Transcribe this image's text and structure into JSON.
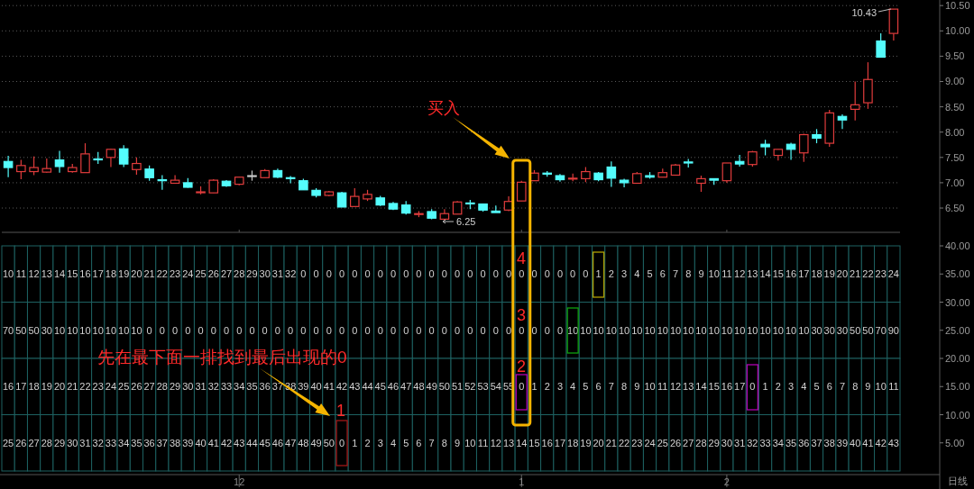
{
  "chart_data": [
    {
      "type": "candlestick",
      "tick_labels": "y",
      "grid": "y",
      "categories": [
        null,
        null,
        null,
        null,
        null,
        null,
        null,
        null,
        null,
        null,
        null,
        null,
        null,
        null,
        null,
        null,
        null,
        null,
        "12",
        null,
        null,
        null,
        null,
        null,
        null,
        null,
        null,
        null,
        null,
        null,
        null,
        null,
        null,
        null,
        null,
        null,
        null,
        null,
        null,
        null,
        "1",
        null,
        null,
        null,
        null,
        null,
        null,
        null,
        null,
        null,
        null,
        null,
        null,
        null,
        null,
        null,
        "2",
        null,
        null,
        null,
        null,
        null,
        null,
        null,
        null,
        null,
        null,
        null,
        null,
        null
      ],
      "ohlc": [
        [
          7.42,
          7.53,
          7.11,
          7.3
        ],
        [
          7.22,
          7.45,
          7.07,
          7.34
        ],
        [
          7.22,
          7.52,
          7.15,
          7.3
        ],
        [
          7.21,
          7.48,
          7.2,
          7.28
        ],
        [
          7.45,
          7.63,
          7.2,
          7.32
        ],
        [
          7.22,
          7.37,
          7.2,
          7.3
        ],
        [
          7.2,
          7.78,
          7.2,
          7.57
        ],
        [
          7.47,
          7.61,
          7.37,
          7.46
        ],
        [
          7.5,
          7.67,
          7.31,
          7.66
        ],
        [
          7.67,
          7.74,
          7.31,
          7.37
        ],
        [
          7.26,
          7.5,
          7.16,
          7.38
        ],
        [
          7.27,
          7.34,
          7.04,
          7.1
        ],
        [
          7.06,
          7.15,
          6.86,
          7.04
        ],
        [
          6.99,
          7.15,
          6.99,
          7.05
        ],
        [
          7.0,
          7.09,
          6.9,
          6.91
        ],
        [
          6.81,
          6.93,
          6.77,
          6.82
        ],
        [
          6.8,
          7.07,
          6.8,
          7.05
        ],
        [
          7.03,
          7.05,
          6.92,
          6.94
        ],
        [
          6.97,
          7.11,
          6.95,
          7.11
        ],
        [
          7.14,
          7.24,
          7.04,
          7.14
        ],
        [
          7.1,
          7.27,
          7.1,
          7.24
        ],
        [
          7.24,
          7.28,
          7.09,
          7.11
        ],
        [
          7.1,
          7.13,
          6.99,
          7.08
        ],
        [
          7.04,
          7.08,
          6.86,
          6.86
        ],
        [
          6.85,
          6.89,
          6.71,
          6.75
        ],
        [
          6.75,
          6.84,
          6.73,
          6.82
        ],
        [
          6.8,
          6.82,
          6.52,
          6.52
        ],
        [
          6.53,
          6.89,
          6.53,
          6.73
        ],
        [
          6.68,
          6.86,
          6.64,
          6.77
        ],
        [
          6.7,
          6.74,
          6.54,
          6.56
        ],
        [
          6.59,
          6.62,
          6.46,
          6.48
        ],
        [
          6.56,
          6.64,
          6.37,
          6.4
        ],
        [
          6.38,
          6.44,
          6.32,
          6.39
        ],
        [
          6.43,
          6.48,
          6.28,
          6.3
        ],
        [
          6.28,
          6.48,
          6.25,
          6.39
        ],
        [
          6.38,
          6.64,
          6.38,
          6.62
        ],
        [
          6.6,
          6.66,
          6.48,
          6.59
        ],
        [
          6.58,
          6.59,
          6.43,
          6.46
        ],
        [
          6.44,
          6.55,
          6.41,
          6.41
        ],
        [
          6.46,
          6.73,
          6.44,
          6.63
        ],
        [
          6.64,
          7.04,
          6.64,
          7.01
        ],
        [
          7.04,
          7.25,
          7.04,
          7.19
        ],
        [
          7.19,
          7.23,
          7.12,
          7.17
        ],
        [
          7.14,
          7.17,
          7.02,
          7.06
        ],
        [
          7.08,
          7.18,
          7.03,
          7.09
        ],
        [
          7.08,
          7.31,
          7.01,
          7.22
        ],
        [
          7.19,
          7.21,
          7.03,
          7.06
        ],
        [
          7.31,
          7.42,
          6.92,
          7.09
        ],
        [
          7.05,
          7.08,
          6.91,
          7.0
        ],
        [
          6.99,
          7.21,
          6.99,
          7.18
        ],
        [
          7.14,
          7.21,
          7.08,
          7.11
        ],
        [
          7.11,
          7.28,
          7.11,
          7.2
        ],
        [
          7.15,
          7.37,
          7.15,
          7.35
        ],
        [
          7.41,
          7.47,
          7.3,
          7.39
        ],
        [
          6.99,
          7.14,
          6.82,
          7.08
        ],
        [
          7.08,
          7.08,
          6.96,
          7.05
        ],
        [
          7.04,
          7.39,
          7.0,
          7.39
        ],
        [
          7.42,
          7.55,
          7.32,
          7.37
        ],
        [
          7.36,
          7.63,
          7.32,
          7.61
        ],
        [
          7.76,
          7.85,
          7.54,
          7.71
        ],
        [
          7.54,
          7.66,
          7.44,
          7.66
        ],
        [
          7.76,
          7.79,
          7.45,
          7.66
        ],
        [
          7.59,
          7.97,
          7.41,
          7.95
        ],
        [
          7.95,
          8.06,
          7.78,
          7.88
        ],
        [
          7.78,
          8.44,
          7.71,
          8.38
        ],
        [
          8.31,
          8.35,
          8.06,
          8.24
        ],
        [
          8.45,
          9.0,
          8.23,
          8.54
        ],
        [
          8.58,
          9.38,
          8.46,
          9.04
        ],
        [
          9.8,
          9.95,
          9.48,
          9.48
        ],
        [
          9.95,
          10.43,
          9.81,
          10.43
        ]
      ],
      "colors": [
        "#54fcfc",
        "#e03c3c",
        "#e03c3c",
        "#e03c3c",
        "#54fcfc",
        "#e03c3c",
        "#e03c3c",
        "#54fcfc",
        "#e03c3c",
        "#54fcfc",
        "#e03c3c",
        "#54fcfc",
        "#54fcfc",
        "#e03c3c",
        "#54fcfc",
        "#e03c3c",
        "#e03c3c",
        "#54fcfc",
        "#e03c3c",
        "#c8c8c8",
        "#e03c3c",
        "#54fcfc",
        "#54fcfc",
        "#54fcfc",
        "#54fcfc",
        "#e03c3c",
        "#54fcfc",
        "#e03c3c",
        "#e03c3c",
        "#54fcfc",
        "#54fcfc",
        "#54fcfc",
        "#e03c3c",
        "#54fcfc",
        "#e03c3c",
        "#e03c3c",
        "#54fcfc",
        "#54fcfc",
        "#54fcfc",
        "#e03c3c",
        "#e03c3c",
        "#e03c3c",
        "#54fcfc",
        "#54fcfc",
        "#e03c3c",
        "#e03c3c",
        "#54fcfc",
        "#54fcfc",
        "#54fcfc",
        "#e03c3c",
        "#54fcfc",
        "#e03c3c",
        "#e03c3c",
        "#54fcfc",
        "#e03c3c",
        "#54fcfc",
        "#e03c3c",
        "#54fcfc",
        "#e03c3c",
        "#54fcfc",
        "#e03c3c",
        "#54fcfc",
        "#e03c3c",
        "#54fcfc",
        "#e03c3c",
        "#54fcfc",
        "#e03c3c",
        "#e03c3c",
        "#54fcfc",
        "#e03c3c"
      ],
      "ylim": [
        6.02,
        10.61
      ],
      "yticks": [
        {
          "value": 6.5,
          "label": "6.50"
        },
        {
          "value": 7,
          "label": "7.00"
        },
        {
          "value": 7.5,
          "label": "7.50"
        },
        {
          "value": 8,
          "label": "8.00"
        },
        {
          "value": 8.5,
          "label": "8.50"
        },
        {
          "value": 9,
          "label": "9.00"
        },
        {
          "value": 9.5,
          "label": "9.50"
        },
        {
          "value": 10,
          "label": "10.00"
        },
        {
          "value": 10.5,
          "label": "10.50"
        }
      ],
      "annotations": [
        "买入",
        "10.43",
        "6.25"
      ]
    },
    {
      "type": "heatmap",
      "data_labels": true,
      "categories": [
        null,
        null,
        null,
        null,
        null,
        null,
        null,
        null,
        null,
        null,
        null,
        null,
        null,
        null,
        null,
        null,
        null,
        null,
        "12",
        null,
        null,
        null,
        null,
        null,
        null,
        null,
        null,
        null,
        null,
        null,
        null,
        null,
        null,
        null,
        null,
        null,
        null,
        null,
        null,
        null,
        "1",
        null,
        null,
        null,
        null,
        null,
        null,
        null,
        null,
        null,
        null,
        null,
        null,
        null,
        null,
        null,
        "2",
        null,
        null,
        null,
        null,
        null,
        null,
        null,
        null,
        null,
        null,
        null,
        null,
        null
      ],
      "y_categories": [
        null,
        null,
        null,
        null
      ],
      "cells": [
        [
          10,
          11,
          12,
          13,
          14,
          15,
          16,
          17,
          18,
          19,
          20,
          21,
          22,
          23,
          24,
          25,
          26,
          27,
          28,
          29,
          30,
          31,
          32,
          0,
          0,
          0,
          0,
          0,
          0,
          0,
          0,
          0,
          0,
          0,
          0,
          0,
          0,
          0,
          0,
          0,
          0,
          0,
          0,
          0,
          0,
          0,
          1,
          2,
          3,
          4,
          5,
          6,
          7,
          8,
          9,
          10,
          11,
          12,
          13,
          14,
          15,
          16,
          17,
          18,
          19,
          20,
          21,
          22,
          23,
          24
        ],
        [
          70,
          50,
          50,
          30,
          10,
          10,
          10,
          10,
          10,
          10,
          10,
          0,
          0,
          0,
          0,
          0,
          0,
          0,
          0,
          0,
          0,
          0,
          0,
          0,
          0,
          0,
          0,
          0,
          0,
          0,
          0,
          0,
          0,
          0,
          0,
          0,
          0,
          0,
          0,
          0,
          0,
          0,
          0,
          0,
          10,
          10,
          10,
          10,
          10,
          10,
          10,
          10,
          10,
          10,
          10,
          10,
          10,
          10,
          10,
          10,
          10,
          10,
          10,
          30,
          30,
          30,
          50,
          50,
          70,
          90
        ],
        [
          16,
          17,
          18,
          19,
          20,
          21,
          22,
          23,
          24,
          25,
          26,
          27,
          28,
          29,
          30,
          31,
          32,
          33,
          34,
          35,
          36,
          37,
          38,
          39,
          40,
          41,
          42,
          43,
          44,
          45,
          46,
          47,
          48,
          49,
          50,
          51,
          52,
          53,
          54,
          55,
          0,
          1,
          2,
          3,
          4,
          5,
          6,
          7,
          8,
          9,
          10,
          11,
          12,
          13,
          14,
          15,
          16,
          17,
          0,
          1,
          2,
          3,
          4,
          5,
          6,
          7,
          8,
          9,
          10,
          11
        ],
        [
          25,
          26,
          27,
          28,
          29,
          30,
          31,
          32,
          33,
          34,
          35,
          36,
          37,
          38,
          39,
          40,
          41,
          42,
          43,
          44,
          45,
          46,
          47,
          48,
          49,
          50,
          0,
          1,
          2,
          3,
          4,
          5,
          6,
          7,
          8,
          9,
          10,
          11,
          12,
          13,
          14,
          15,
          16,
          17,
          18,
          19,
          20,
          21,
          22,
          23,
          24,
          25,
          26,
          27,
          28,
          29,
          30,
          31,
          32,
          33,
          34,
          35,
          36,
          37,
          38,
          39,
          40,
          41,
          42,
          43
        ]
      ],
      "annotations": [
        "先在最下面一排找到最后出现的0",
        "1",
        "2",
        "3",
        "4",
        "日线",
        "40.00",
        "35.00",
        "30.00",
        "25.00",
        "20.00",
        "15.00",
        "10.00",
        "5.00"
      ]
    }
  ]
}
